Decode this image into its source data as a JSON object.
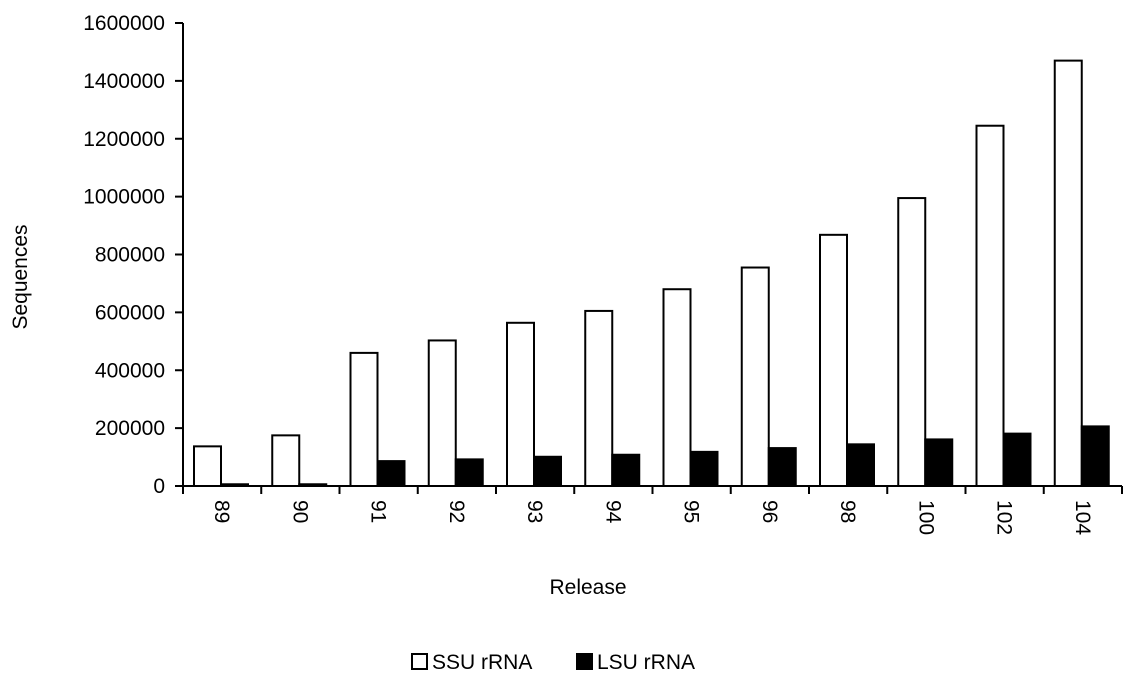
{
  "chart_data": {
    "type": "bar",
    "title": "",
    "xlabel": "Release",
    "ylabel": "Sequences",
    "categories": [
      "89",
      "90",
      "91",
      "92",
      "93",
      "94",
      "95",
      "96",
      "98",
      "100",
      "102",
      "104"
    ],
    "series": [
      {
        "name": "SSU rRNA",
        "fill": "#ffffff",
        "values": [
          137000,
          175000,
          460000,
          503000,
          564000,
          605000,
          680000,
          755000,
          868000,
          995000,
          1245000,
          1470000
        ]
      },
      {
        "name": "LSU rRNA",
        "fill": "#000000",
        "values": [
          6000,
          6000,
          86000,
          92000,
          101000,
          108000,
          118000,
          131000,
          144000,
          161000,
          181000,
          206000
        ]
      }
    ],
    "ylim": [
      0,
      1600000
    ],
    "yticks": [
      "0",
      "200000",
      "400000",
      "600000",
      "800000",
      "1000000",
      "1200000",
      "1400000",
      "1600000"
    ],
    "grid": false,
    "legend": "bottom"
  }
}
